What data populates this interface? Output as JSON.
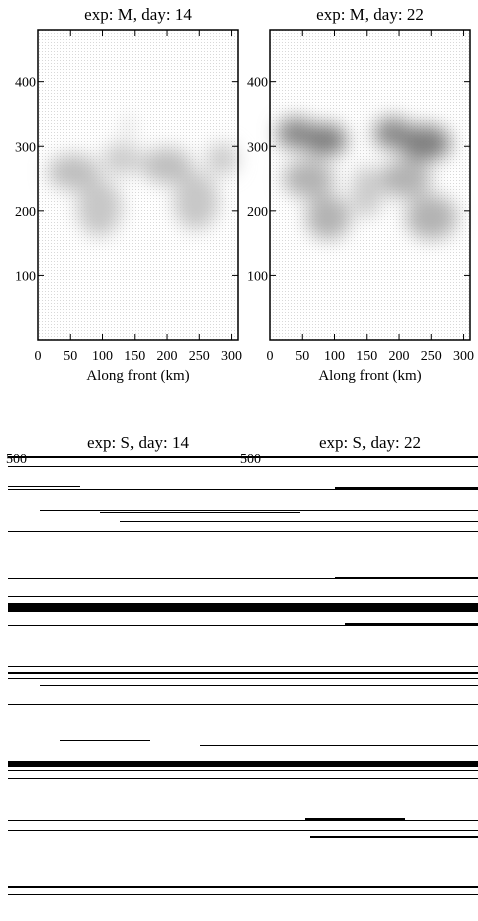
{
  "chart_data": [
    {
      "type": "heatmap",
      "title": "exp: M, day: 14",
      "xlabel": "Along front (km)",
      "ylabel": "",
      "xlim": [
        0,
        310
      ],
      "ylim": [
        0,
        480
      ],
      "xticks": [
        0,
        50,
        100,
        150,
        200,
        250,
        300
      ],
      "xtick_labels": [
        "0",
        "50",
        "100",
        "150",
        "200",
        "250",
        "300"
      ],
      "yticks": [
        100,
        200,
        300,
        400
      ],
      "ytick_labels": [
        "100",
        "200",
        "300",
        "400"
      ],
      "colormap": "grayscale (white background, dark gray features)",
      "features": [
        {
          "x": 55,
          "y": 260,
          "rx": 40,
          "ry": 28,
          "intensity": 0.25
        },
        {
          "x": 95,
          "y": 205,
          "rx": 35,
          "ry": 45,
          "intensity": 0.22
        },
        {
          "x": 130,
          "y": 280,
          "rx": 30,
          "ry": 25,
          "intensity": 0.2
        },
        {
          "x": 200,
          "y": 270,
          "rx": 40,
          "ry": 28,
          "intensity": 0.25
        },
        {
          "x": 245,
          "y": 215,
          "rx": 35,
          "ry": 45,
          "intensity": 0.22
        },
        {
          "x": 285,
          "y": 280,
          "rx": 25,
          "ry": 25,
          "intensity": 0.2
        },
        {
          "x": 140,
          "y": 330,
          "rx": 6,
          "ry": 18,
          "intensity": 0.18
        }
      ]
    },
    {
      "type": "heatmap",
      "title": "exp: M, day: 22",
      "xlabel": "Along front (km)",
      "ylabel": "",
      "xlim": [
        0,
        310
      ],
      "ylim": [
        0,
        480
      ],
      "xticks": [
        0,
        50,
        100,
        150,
        200,
        250,
        300
      ],
      "xtick_labels": [
        "0",
        "50",
        "100",
        "150",
        "200",
        "250",
        "300"
      ],
      "yticks": [
        100,
        200,
        300,
        400
      ],
      "ytick_labels": [
        "100",
        "200",
        "300",
        "400"
      ],
      "colormap": "grayscale (white background, dark gray features)",
      "features": [
        {
          "x": 40,
          "y": 320,
          "rx": 30,
          "ry": 25,
          "intensity": 0.45
        },
        {
          "x": 85,
          "y": 310,
          "rx": 35,
          "ry": 25,
          "intensity": 0.5
        },
        {
          "x": 60,
          "y": 250,
          "rx": 40,
          "ry": 30,
          "intensity": 0.3
        },
        {
          "x": 90,
          "y": 190,
          "rx": 35,
          "ry": 35,
          "intensity": 0.3
        },
        {
          "x": 190,
          "y": 320,
          "rx": 30,
          "ry": 25,
          "intensity": 0.45
        },
        {
          "x": 240,
          "y": 305,
          "rx": 40,
          "ry": 28,
          "intensity": 0.5
        },
        {
          "x": 210,
          "y": 250,
          "rx": 40,
          "ry": 30,
          "intensity": 0.3
        },
        {
          "x": 250,
          "y": 190,
          "rx": 40,
          "ry": 35,
          "intensity": 0.3
        },
        {
          "x": 150,
          "y": 230,
          "rx": 25,
          "ry": 40,
          "intensity": 0.2
        }
      ]
    },
    {
      "type": "heatmap",
      "title": "exp: S, day: 14",
      "xlabel": "",
      "ylabel": "",
      "yticks": [
        500
      ],
      "ytick_labels": [
        "500"
      ],
      "note_visible": "rendering corrupted into horizontal black streaks"
    },
    {
      "type": "heatmap",
      "title": "exp: S, day: 22",
      "xlabel": "",
      "ylabel": "",
      "yticks": [
        500
      ],
      "ytick_labels": [
        "500"
      ]
    }
  ]
}
